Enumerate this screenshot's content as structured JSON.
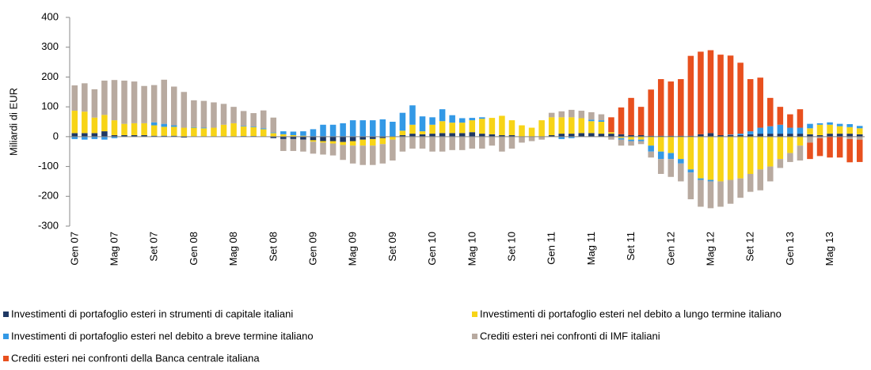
{
  "chart_data": {
    "type": "stacked_bar",
    "y_label": "Miliardi di EUR",
    "categories": [
      "Gen 07",
      null,
      null,
      null,
      "Mag 07",
      null,
      null,
      null,
      "Set 07",
      null,
      null,
      null,
      "Gen 08",
      null,
      null,
      null,
      "Mag 08",
      null,
      null,
      null,
      "Set 08",
      null,
      null,
      null,
      "Gen 09",
      null,
      null,
      null,
      "Mag 09",
      null,
      null,
      null,
      "Set 09",
      null,
      null,
      null,
      "Gen 10",
      null,
      null,
      null,
      "Mag 10",
      null,
      null,
      null,
      "Set 10",
      null,
      null,
      null,
      "Gen 11",
      null,
      null,
      null,
      "Mag 11",
      null,
      null,
      null,
      "Set 11",
      null,
      null,
      null,
      "Gen 12",
      null,
      null,
      null,
      "Mag 12",
      null,
      null,
      null,
      "Set 12",
      null,
      null,
      null,
      "Gen 13",
      null,
      null,
      null,
      "Mag 13",
      null,
      null,
      null
    ],
    "ylim": [
      -300,
      400
    ],
    "yticks": [
      -300,
      -200,
      -100,
      0,
      100,
      200,
      300,
      400
    ],
    "series": [
      {
        "name": "Investimenti di portafoglio esteri in strumenti di capitale italiani",
        "color": "#1f3864",
        "values": [
          12,
          12,
          12,
          18,
          5,
          5,
          5,
          5,
          3,
          3,
          3,
          -3,
          0,
          0,
          0,
          0,
          0,
          2,
          2,
          0,
          -5,
          -8,
          -8,
          -10,
          -12,
          -15,
          -15,
          -18,
          -15,
          -10,
          -8,
          -5,
          0,
          5,
          10,
          8,
          10,
          12,
          12,
          12,
          15,
          10,
          8,
          5,
          5,
          0,
          0,
          0,
          5,
          10,
          10,
          12,
          12,
          10,
          10,
          8,
          5,
          5,
          3,
          3,
          3,
          3,
          3,
          8,
          12,
          5,
          5,
          5,
          8,
          10,
          10,
          10,
          10,
          10,
          8,
          5,
          10,
          10,
          10,
          8
        ]
      },
      {
        "name": "Investimenti di portafoglio esteri nel debito a lungo termine italiano",
        "color": "#f7d417",
        "values": [
          75,
          72,
          52,
          55,
          50,
          38,
          40,
          40,
          35,
          30,
          30,
          30,
          30,
          28,
          30,
          40,
          45,
          32,
          30,
          25,
          12,
          8,
          5,
          3,
          -5,
          -5,
          -8,
          -10,
          -15,
          -20,
          -22,
          -20,
          -10,
          15,
          30,
          10,
          30,
          40,
          35,
          35,
          40,
          50,
          55,
          65,
          50,
          38,
          30,
          55,
          60,
          55,
          55,
          50,
          40,
          40,
          5,
          -5,
          -10,
          -10,
          -30,
          -50,
          -55,
          -75,
          -110,
          -140,
          -145,
          -150,
          -145,
          -140,
          -125,
          -110,
          -100,
          -75,
          -55,
          -30,
          20,
          35,
          30,
          25,
          22,
          20
        ]
      },
      {
        "name": "Investimenti di portafoglio esteri nel debito a breve termine italiano",
        "color": "#3399e6",
        "values": [
          -8,
          -10,
          -8,
          -10,
          -5,
          0,
          0,
          0,
          10,
          10,
          5,
          0,
          2,
          2,
          0,
          0,
          0,
          2,
          2,
          3,
          2,
          10,
          12,
          15,
          25,
          40,
          40,
          45,
          55,
          55,
          55,
          58,
          50,
          60,
          65,
          50,
          25,
          40,
          25,
          15,
          8,
          5,
          0,
          0,
          0,
          0,
          0,
          0,
          0,
          -8,
          -5,
          0,
          5,
          5,
          0,
          -5,
          -5,
          -5,
          -20,
          -25,
          -20,
          -15,
          -10,
          -5,
          -5,
          0,
          2,
          5,
          10,
          20,
          25,
          30,
          20,
          20,
          15,
          5,
          8,
          8,
          10,
          8
        ]
      },
      {
        "name": "Crediti esteri nei confronti di IMF italiani",
        "color": "#b8aaa0",
        "values": [
          85,
          95,
          95,
          115,
          135,
          145,
          140,
          125,
          125,
          148,
          130,
          120,
          90,
          90,
          85,
          70,
          55,
          50,
          45,
          60,
          50,
          -40,
          -40,
          -40,
          -40,
          -40,
          -40,
          -50,
          -60,
          -65,
          -65,
          -65,
          -70,
          -50,
          -40,
          -40,
          -50,
          -50,
          -45,
          -45,
          -40,
          -40,
          -30,
          -50,
          -40,
          -20,
          -15,
          -10,
          15,
          20,
          25,
          25,
          25,
          20,
          -10,
          -20,
          -15,
          -10,
          -20,
          -50,
          -60,
          -60,
          -90,
          -90,
          -90,
          -85,
          -80,
          -65,
          -60,
          -70,
          -50,
          -30,
          -30,
          -50,
          -20,
          -5,
          0,
          0,
          -8,
          -10
        ]
      },
      {
        "name": "Crediti esteri nei confronti della Banca centrale italiana",
        "color": "#e8501e",
        "values": [
          0,
          0,
          0,
          0,
          0,
          0,
          0,
          0,
          0,
          0,
          0,
          0,
          0,
          0,
          0,
          0,
          0,
          0,
          0,
          0,
          0,
          0,
          0,
          0,
          0,
          0,
          0,
          0,
          0,
          0,
          0,
          0,
          0,
          0,
          0,
          0,
          0,
          0,
          0,
          0,
          0,
          0,
          0,
          0,
          0,
          0,
          0,
          0,
          0,
          0,
          0,
          0,
          0,
          0,
          50,
          90,
          125,
          95,
          155,
          190,
          182,
          190,
          268,
          277,
          278,
          270,
          265,
          238,
          175,
          168,
          95,
          60,
          45,
          62,
          -55,
          -60,
          -70,
          -70,
          -78,
          -75
        ]
      }
    ]
  }
}
